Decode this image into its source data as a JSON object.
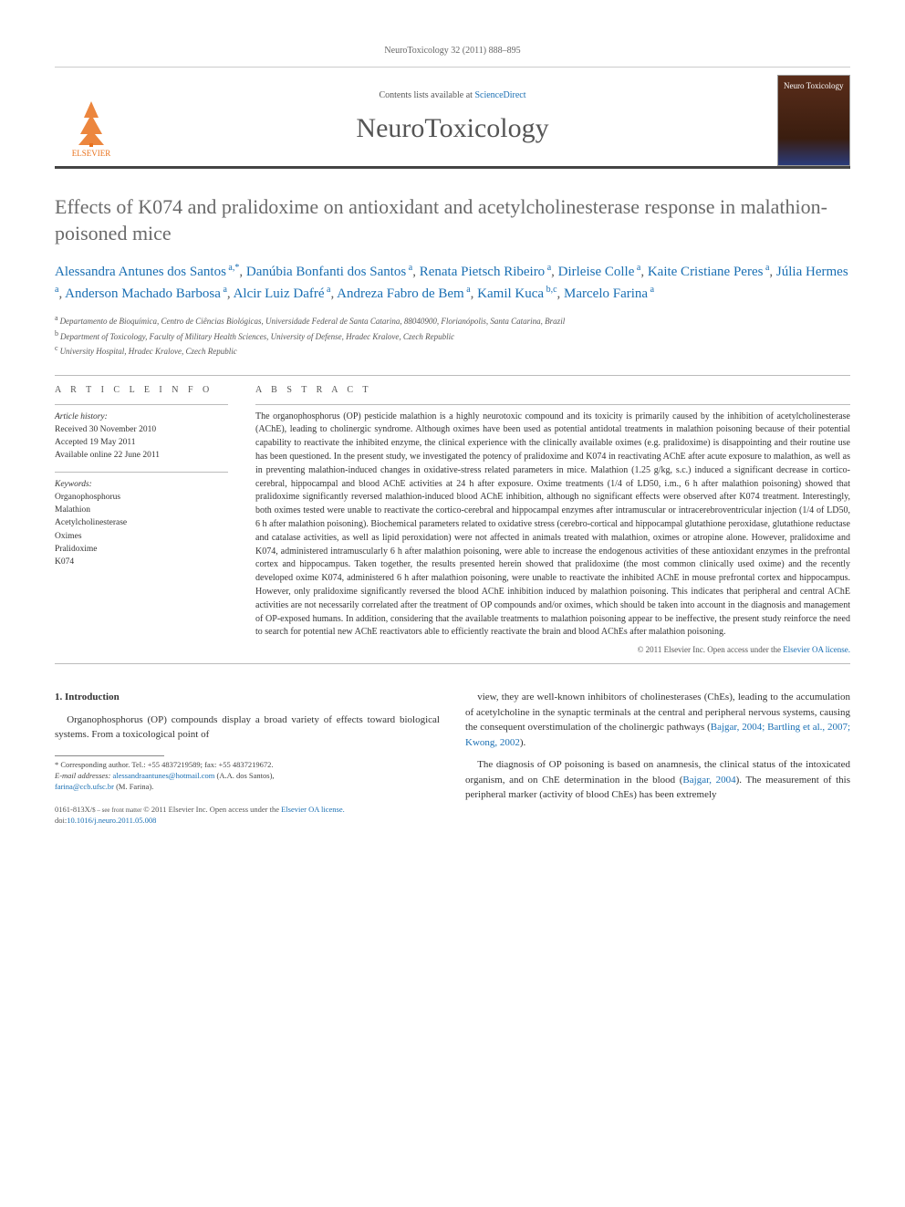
{
  "journal_ref": "NeuroToxicology 32 (2011) 888–895",
  "masthead": {
    "contents_prefix": "Contents lists available at ",
    "contents_link": "ScienceDirect",
    "journal_title": "NeuroToxicology",
    "elsevier_label": "ELSEVIER",
    "cover_text": "Neuro Toxicology"
  },
  "title": "Effects of K074 and pralidoxime on antioxidant and acetylcholinesterase response in malathion-poisoned mice",
  "authors_html": "Alessandra Antunes dos Santos|a,*|, Danúbia Bonfanti dos Santos|a|, Renata Pietsch Ribeiro|a|, Dirleise Colle|a|, Kaite Cristiane Peres|a|, Júlia Hermes|a|, Anderson Machado Barbosa|a|, Alcir Luiz Dafré|a|, Andreza Fabro de Bem|a|, Kamil Kuca|b,c|, Marcelo Farina|a|",
  "affiliations": [
    {
      "sup": "a",
      "text": "Departamento de Bioquímica, Centro de Ciências Biológicas, Universidade Federal de Santa Catarina, 88040900, Florianópolis, Santa Catarina, Brazil"
    },
    {
      "sup": "b",
      "text": "Department of Toxicology, Faculty of Military Health Sciences, University of Defense, Hradec Kralove, Czech Republic"
    },
    {
      "sup": "c",
      "text": "University Hospital, Hradec Kralove, Czech Republic"
    }
  ],
  "article_info": {
    "header": "A R T I C L E   I N F O",
    "history_label": "Article history:",
    "received": "Received 30 November 2010",
    "accepted": "Accepted 19 May 2011",
    "online": "Available online 22 June 2011",
    "keywords_label": "Keywords:",
    "keywords": [
      "Organophosphorus",
      "Malathion",
      "Acetylcholinesterase",
      "Oximes",
      "Pralidoxime",
      "K074"
    ]
  },
  "abstract": {
    "header": "A B S T R A C T",
    "text": "The organophosphorus (OP) pesticide malathion is a highly neurotoxic compound and its toxicity is primarily caused by the inhibition of acetylcholinesterase (AChE), leading to cholinergic syndrome. Although oximes have been used as potential antidotal treatments in malathion poisoning because of their potential capability to reactivate the inhibited enzyme, the clinical experience with the clinically available oximes (e.g. pralidoxime) is disappointing and their routine use has been questioned. In the present study, we investigated the potency of pralidoxime and K074 in reactivating AChE after acute exposure to malathion, as well as in preventing malathion-induced changes in oxidative-stress related parameters in mice. Malathion (1.25 g/kg, s.c.) induced a significant decrease in cortico-cerebral, hippocampal and blood AChE activities at 24 h after exposure. Oxime treatments (1/4 of LD50, i.m., 6 h after malathion poisoning) showed that pralidoxime significantly reversed malathion-induced blood AChE inhibition, although no significant effects were observed after K074 treatment. Interestingly, both oximes tested were unable to reactivate the cortico-cerebral and hippocampal enzymes after intramuscular or intracerebroventricular injection (1/4 of LD50, 6 h after malathion poisoning). Biochemical parameters related to oxidative stress (cerebro-cortical and hippocampal glutathione peroxidase, glutathione reductase and catalase activities, as well as lipid peroxidation) were not affected in animals treated with malathion, oximes or atropine alone. However, pralidoxime and K074, administered intramuscularly 6 h after malathion poisoning, were able to increase the endogenous activities of these antioxidant enzymes in the prefrontal cortex and hippocampus. Taken together, the results presented herein showed that pralidoxime (the most common clinically used oxime) and the recently developed oxime K074, administered 6 h after malathion poisoning, were unable to reactivate the inhibited AChE in mouse prefrontal cortex and hippocampus. However, only pralidoxime significantly reversed the blood AChE inhibition induced by malathion poisoning. This indicates that peripheral and central AChE activities are not necessarily correlated after the treatment of OP compounds and/or oximes, which should be taken into account in the diagnosis and management of OP-exposed humans. In addition, considering that the available treatments to malathion poisoning appear to be ineffective, the present study reinforce the need to search for potential new AChE reactivators able to efficiently reactivate the brain and blood AChEs after malathion poisoning.",
    "copyright": "© 2011 Elsevier Inc.",
    "open_access": "Open access under the ",
    "license_link": "Elsevier OA license."
  },
  "body": {
    "section1_heading": "1. Introduction",
    "left_para1": "Organophosphorus (OP) compounds display a broad variety of effects toward biological systems. From a toxicological point of",
    "right_para1": "view, they are well-known inhibitors of cholinesterases (ChEs), leading to the accumulation of acetylcholine in the synaptic terminals at the central and peripheral nervous systems, causing the consequent overstimulation of the cholinergic pathways (",
    "right_cite1": "Bajgar, 2004; Bartling et al., 2007; Kwong, 2002",
    "right_para1b": ").",
    "right_para2a": "The diagnosis of OP poisoning is based on anamnesis, the clinical status of the intoxicated organism, and on ChE determination in the blood (",
    "right_cite2": "Bajgar, 2004",
    "right_para2b": "). The measurement of this peripheral marker (activity of blood ChEs) has been extremely"
  },
  "footnotes": {
    "corresponding": "* Corresponding author. Tel.: +55 4837219589; fax: +55 4837219672.",
    "email_label": "E-mail addresses:",
    "email1": "alessandraantunes@hotmail.com",
    "email1_name": " (A.A. dos Santos),",
    "email2": "farina@ccb.ufsc.br",
    "email2_name": " (M. Farina)."
  },
  "bottom": {
    "issn": "0161-813X/",
    "copyright": "© 2011 Elsevier Inc.",
    "open_access": "Open access under the ",
    "license_link": "Elsevier OA license.",
    "doi_label": "doi:",
    "doi": "10.1016/j.neuro.2011.05.008"
  },
  "colors": {
    "link": "#1a6fb3",
    "text": "#333333",
    "title_gray": "#6a6a6a"
  }
}
